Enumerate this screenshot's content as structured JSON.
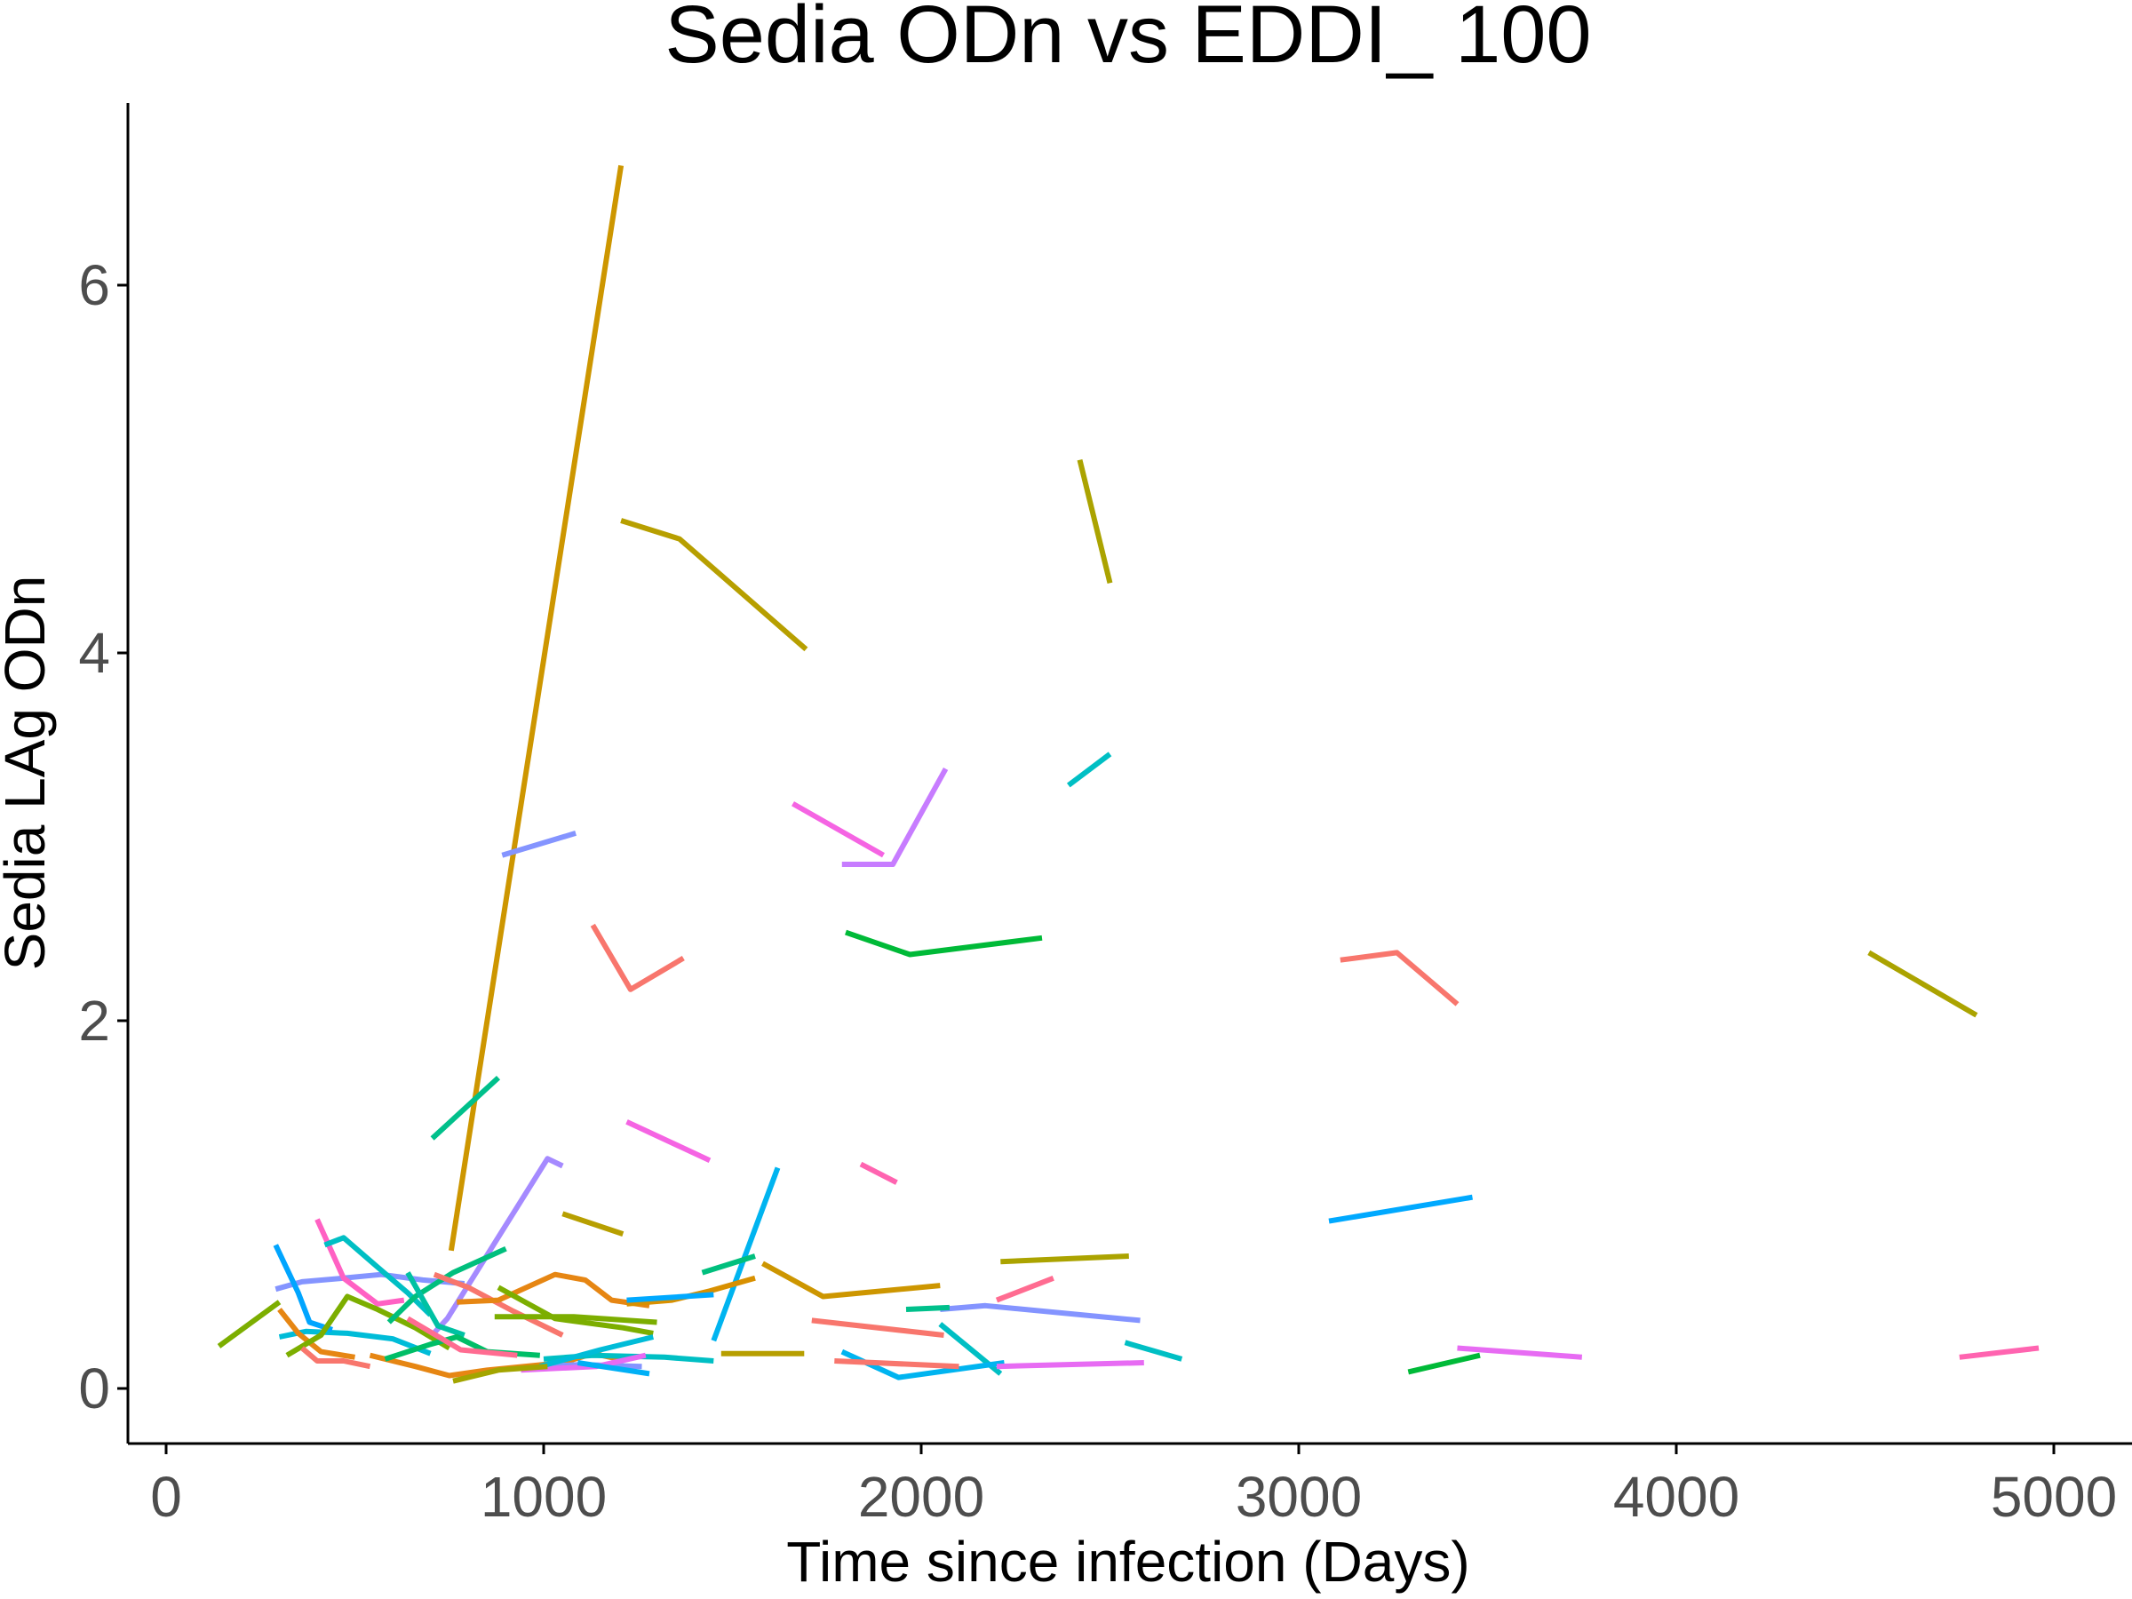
{
  "chart_data": {
    "type": "line",
    "title": "Sedia ODn vs EDDI_ 100",
    "xlabel": "Time since infection (Days)",
    "ylabel": "Sedia LAg ODn",
    "xlim": [
      -100,
      5050
    ],
    "ylim": [
      -0.3,
      7.0
    ],
    "xticks": [
      0,
      1000,
      2000,
      3000,
      4000,
      5000
    ],
    "xtick_labels": [
      "0",
      "1000",
      "2000",
      "3000",
      "4000",
      "5000"
    ],
    "yticks": [
      0,
      2,
      4,
      6
    ],
    "ytick_labels": [
      "0",
      "2",
      "4",
      "6"
    ],
    "grid": false,
    "legend": "none",
    "series": [
      {
        "color": "#CD9600",
        "x": [
          755,
          1205
        ],
        "y": [
          0.75,
          6.65
        ]
      },
      {
        "color": "#B79F00",
        "x": [
          1205,
          1360,
          1695
        ],
        "y": [
          4.72,
          4.62,
          4.02
        ]
      },
      {
        "color": "#ABA300",
        "x": [
          2420,
          2500
        ],
        "y": [
          5.05,
          4.38
        ]
      },
      {
        "color": "#00BFC4",
        "x": [
          2390,
          2500
        ],
        "y": [
          3.28,
          3.45
        ]
      },
      {
        "color": "#C77CFF",
        "x": [
          1790,
          1925,
          2065
        ],
        "y": [
          2.85,
          2.85,
          3.37
        ]
      },
      {
        "color": "#F564E3",
        "x": [
          1660,
          1900
        ],
        "y": [
          3.18,
          2.9
        ]
      },
      {
        "color": "#8494FF",
        "x": [
          890,
          1085
        ],
        "y": [
          2.9,
          3.02
        ]
      },
      {
        "color": "#00BA38",
        "x": [
          1800,
          1970,
          2320
        ],
        "y": [
          2.48,
          2.36,
          2.45
        ]
      },
      {
        "color": "#F8766D",
        "x": [
          1130,
          1230,
          1370
        ],
        "y": [
          2.52,
          2.17,
          2.34
        ]
      },
      {
        "color": "#F8766D",
        "x": [
          3110,
          3260,
          3420
        ],
        "y": [
          2.33,
          2.37,
          2.09
        ]
      },
      {
        "color": "#ABA300",
        "x": [
          4510,
          4795
        ],
        "y": [
          2.37,
          2.03
        ]
      },
      {
        "color": "#00C08B",
        "x": [
          705,
          880
        ],
        "y": [
          1.36,
          1.69
        ]
      },
      {
        "color": "#F564E3",
        "x": [
          1220,
          1440
        ],
        "y": [
          1.45,
          1.24
        ]
      },
      {
        "color": "#FF64B0",
        "x": [
          1840,
          1935
        ],
        "y": [
          1.22,
          1.12
        ]
      },
      {
        "color": "#00B4F0",
        "x": [
          1450,
          1620
        ],
        "y": [
          0.26,
          1.2
        ]
      },
      {
        "color": "#A58AFF",
        "x": [
          700,
          745,
          1010,
          1050
        ],
        "y": [
          0.28,
          0.38,
          1.25,
          1.21
        ]
      },
      {
        "color": "#B79F00",
        "x": [
          1050,
          1210
        ],
        "y": [
          0.95,
          0.84
        ]
      },
      {
        "color": "#00A9FF",
        "x": [
          3080,
          3460
        ],
        "y": [
          0.91,
          1.04
        ]
      },
      {
        "color": "#ABA300",
        "x": [
          2210,
          2550
        ],
        "y": [
          0.69,
          0.72
        ]
      },
      {
        "color": "#00BF7D",
        "x": [
          1420,
          1560
        ],
        "y": [
          0.63,
          0.72
        ]
      },
      {
        "color": "#CD9600",
        "x": [
          1580,
          1740,
          2050
        ],
        "y": [
          0.68,
          0.5,
          0.56
        ]
      },
      {
        "color": "#FF6C91",
        "x": [
          2200,
          2350
        ],
        "y": [
          0.48,
          0.6
        ]
      },
      {
        "color": "#8494FF",
        "x": [
          2050,
          2170,
          2580
        ],
        "y": [
          0.43,
          0.45,
          0.37
        ]
      },
      {
        "color": "#F8766D",
        "x": [
          1710,
          2060
        ],
        "y": [
          0.37,
          0.29
        ]
      },
      {
        "color": "#00BFC4",
        "x": [
          2050,
          2210
        ],
        "y": [
          0.35,
          0.08
        ]
      },
      {
        "color": "#00B4F0",
        "x": [
          1790,
          1940,
          2220
        ],
        "y": [
          0.2,
          0.06,
          0.14
        ]
      },
      {
        "color": "#00C08B",
        "x": [
          1960,
          2075
        ],
        "y": [
          0.43,
          0.44
        ]
      },
      {
        "color": "#F8766D",
        "x": [
          1770,
          2100
        ],
        "y": [
          0.15,
          0.12
        ]
      },
      {
        "color": "#E76BF3",
        "x": [
          2200,
          2590
        ],
        "y": [
          0.12,
          0.14
        ]
      },
      {
        "color": "#00BFC4",
        "x": [
          2540,
          2690
        ],
        "y": [
          0.25,
          0.16
        ]
      },
      {
        "color": "#B79F00",
        "x": [
          1470,
          1690
        ],
        "y": [
          0.19,
          0.19
        ]
      },
      {
        "color": "#E76BF3",
        "x": [
          3420,
          3750
        ],
        "y": [
          0.22,
          0.17
        ]
      },
      {
        "color": "#00BA38",
        "x": [
          3290,
          3480
        ],
        "y": [
          0.09,
          0.18
        ]
      },
      {
        "color": "#FF64B0",
        "x": [
          4750,
          4960
        ],
        "y": [
          0.17,
          0.22
        ]
      },
      {
        "color": "#7CAE00",
        "x": [
          140,
          300
        ],
        "y": [
          0.23,
          0.47
        ]
      },
      {
        "color": "#8494FF",
        "x": [
          290,
          360,
          470,
          570,
          680,
          790
        ],
        "y": [
          0.54,
          0.58,
          0.6,
          0.62,
          0.59,
          0.57
        ]
      },
      {
        "color": "#00BCD8",
        "x": [
          300,
          370,
          480,
          600,
          700
        ],
        "y": [
          0.28,
          0.31,
          0.3,
          0.27,
          0.19
        ]
      },
      {
        "color": "#00A5FF",
        "x": [
          290,
          350,
          380,
          440
        ],
        "y": [
          0.78,
          0.52,
          0.36,
          0.32
        ]
      },
      {
        "color": "#FF61C3",
        "x": [
          400,
          470,
          560,
          630
        ],
        "y": [
          0.92,
          0.6,
          0.46,
          0.48
        ]
      },
      {
        "color": "#00BFC4",
        "x": [
          420,
          470,
          560,
          640,
          700
        ],
        "y": [
          0.78,
          0.82,
          0.66,
          0.52,
          0.4
        ]
      },
      {
        "color": "#E68613",
        "x": [
          300,
          350,
          410,
          500
        ],
        "y": [
          0.43,
          0.3,
          0.2,
          0.17
        ]
      },
      {
        "color": "#7CAE00",
        "x": [
          320,
          410,
          480,
          560,
          660,
          750
        ],
        "y": [
          0.18,
          0.29,
          0.5,
          0.43,
          0.33,
          0.22
        ]
      },
      {
        "color": "#F8766D",
        "x": [
          360,
          400,
          470,
          540
        ],
        "y": [
          0.22,
          0.15,
          0.15,
          0.12
        ]
      },
      {
        "color": "#E68613",
        "x": [
          540,
          660,
          750,
          850,
          1050,
          1130,
          1200
        ],
        "y": [
          0.18,
          0.12,
          0.07,
          0.1,
          0.14,
          0.19,
          0.16
        ]
      },
      {
        "color": "#00BF7D",
        "x": [
          590,
          660,
          760,
          900
        ],
        "y": [
          0.36,
          0.5,
          0.63,
          0.76
        ]
      },
      {
        "color": "#00C1A3",
        "x": [
          640,
          720,
          790
        ],
        "y": [
          0.63,
          0.34,
          0.29
        ]
      },
      {
        "color": "#00BE67",
        "x": [
          580,
          700,
          770,
          850,
          990
        ],
        "y": [
          0.16,
          0.24,
          0.28,
          0.2,
          0.18
        ]
      },
      {
        "color": "#F8766D",
        "x": [
          710,
          800,
          920,
          1050
        ],
        "y": [
          0.62,
          0.55,
          0.42,
          0.29
        ]
      },
      {
        "color": "#FF6C91",
        "x": [
          640,
          780,
          930
        ],
        "y": [
          0.38,
          0.21,
          0.18
        ]
      },
      {
        "color": "#E68613",
        "x": [
          770,
          880,
          1030,
          1110,
          1180,
          1280
        ],
        "y": [
          0.47,
          0.48,
          0.62,
          0.59,
          0.48,
          0.45
        ]
      },
      {
        "color": "#D89000",
        "x": [
          1220,
          1340,
          1440,
          1560
        ],
        "y": [
          0.46,
          0.48,
          0.53,
          0.6
        ]
      },
      {
        "color": "#00A9FF",
        "x": [
          1220,
          1450
        ],
        "y": [
          0.48,
          0.51
        ]
      },
      {
        "color": "#7CAE00",
        "x": [
          880,
          1030,
          1210,
          1290
        ],
        "y": [
          0.55,
          0.38,
          0.33,
          0.3
        ]
      },
      {
        "color": "#7CAE00",
        "x": [
          870,
          1080,
          1300
        ],
        "y": [
          0.39,
          0.39,
          0.36
        ]
      },
      {
        "color": "#00BFC4",
        "x": [
          1000,
          1130,
          1320,
          1450
        ],
        "y": [
          0.16,
          0.18,
          0.17,
          0.15
        ]
      },
      {
        "color": "#8494FF",
        "x": [
          990,
          1100,
          1260
        ],
        "y": [
          0.12,
          0.13,
          0.12
        ]
      },
      {
        "color": "#E76BF3",
        "x": [
          940,
          1140,
          1270
        ],
        "y": [
          0.1,
          0.12,
          0.18
        ]
      },
      {
        "color": "#00BCD8",
        "x": [
          990,
          1150,
          1290
        ],
        "y": [
          0.12,
          0.21,
          0.28
        ]
      },
      {
        "color": "#A3A500",
        "x": [
          760,
          880,
          1010
        ],
        "y": [
          0.04,
          0.1,
          0.12
        ]
      },
      {
        "color": "#00B0F6",
        "x": [
          1090,
          1280
        ],
        "y": [
          0.14,
          0.08
        ]
      }
    ]
  }
}
